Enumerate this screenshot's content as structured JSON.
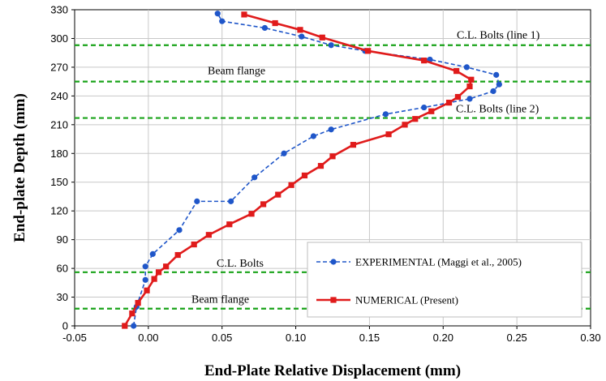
{
  "chart_data": {
    "type": "line",
    "xlabel": "End-Plate Relative Displacement (mm)",
    "ylabel": "End-plate Depth (mm)",
    "xlim": [
      -0.05,
      0.3
    ],
    "ylim": [
      0,
      330
    ],
    "x_ticks": [
      "-0.05",
      "0.00",
      "0.05",
      "0.10",
      "0.15",
      "0.20",
      "0.25",
      "0.30"
    ],
    "y_ticks": [
      "0",
      "30",
      "60",
      "90",
      "120",
      "150",
      "180",
      "210",
      "240",
      "270",
      "300",
      "330"
    ],
    "grid": true,
    "reference_lines": [
      {
        "y": 293,
        "label": "C.L. Bolts (line  1)",
        "color": "#19a319"
      },
      {
        "y": 255,
        "label": "Beam flange",
        "color": "#19a319"
      },
      {
        "y": 217,
        "label": "C.L. Bolts (line 2)",
        "color": "#19a319"
      },
      {
        "y": 56,
        "label": "C.L. Bolts",
        "color": "#19a319"
      },
      {
        "y": 18,
        "label": "Beam flange",
        "color": "#19a319"
      }
    ],
    "legend_position": "bottom-right",
    "series": [
      {
        "name": "EXPERIMENTAL (Maggi et al., 2005)",
        "color": "#1f56c9",
        "style": "dashed",
        "marker": "circle",
        "points": [
          [
            -0.01,
            0
          ],
          [
            -0.008,
            20
          ],
          [
            -0.002,
            48
          ],
          [
            -0.002,
            62
          ],
          [
            0.003,
            75
          ],
          [
            0.021,
            100
          ],
          [
            0.033,
            130
          ],
          [
            0.056,
            130
          ],
          [
            0.072,
            155
          ],
          [
            0.092,
            180
          ],
          [
            0.112,
            198
          ],
          [
            0.124,
            205
          ],
          [
            0.161,
            221
          ],
          [
            0.187,
            228
          ],
          [
            0.218,
            237
          ],
          [
            0.234,
            245
          ],
          [
            0.238,
            252
          ],
          [
            0.236,
            262
          ],
          [
            0.216,
            270
          ],
          [
            0.191,
            278
          ],
          [
            0.147,
            287
          ],
          [
            0.124,
            293
          ],
          [
            0.104,
            302
          ],
          [
            0.079,
            311
          ],
          [
            0.05,
            318
          ],
          [
            0.047,
            326
          ]
        ]
      },
      {
        "name": "NUMERICAL (Present)",
        "color": "#e01b1b",
        "style": "solid",
        "marker": "square",
        "points": [
          [
            -0.016,
            0
          ],
          [
            -0.011,
            13
          ],
          [
            -0.007,
            24
          ],
          [
            -0.001,
            37
          ],
          [
            0.004,
            49
          ],
          [
            0.007,
            56
          ],
          [
            0.012,
            62
          ],
          [
            0.02,
            74
          ],
          [
            0.031,
            85
          ],
          [
            0.041,
            95
          ],
          [
            0.055,
            106
          ],
          [
            0.07,
            117
          ],
          [
            0.078,
            127
          ],
          [
            0.088,
            137
          ],
          [
            0.097,
            147
          ],
          [
            0.106,
            157
          ],
          [
            0.117,
            167
          ],
          [
            0.125,
            177
          ],
          [
            0.139,
            189
          ],
          [
            0.163,
            200
          ],
          [
            0.174,
            210
          ],
          [
            0.181,
            216
          ],
          [
            0.192,
            224
          ],
          [
            0.204,
            233
          ],
          [
            0.21,
            239
          ],
          [
            0.218,
            250
          ],
          [
            0.219,
            257
          ],
          [
            0.209,
            266
          ],
          [
            0.187,
            277
          ],
          [
            0.149,
            287
          ],
          [
            0.118,
            301
          ],
          [
            0.103,
            309
          ],
          [
            0.086,
            316
          ],
          [
            0.065,
            325
          ]
        ]
      }
    ]
  }
}
